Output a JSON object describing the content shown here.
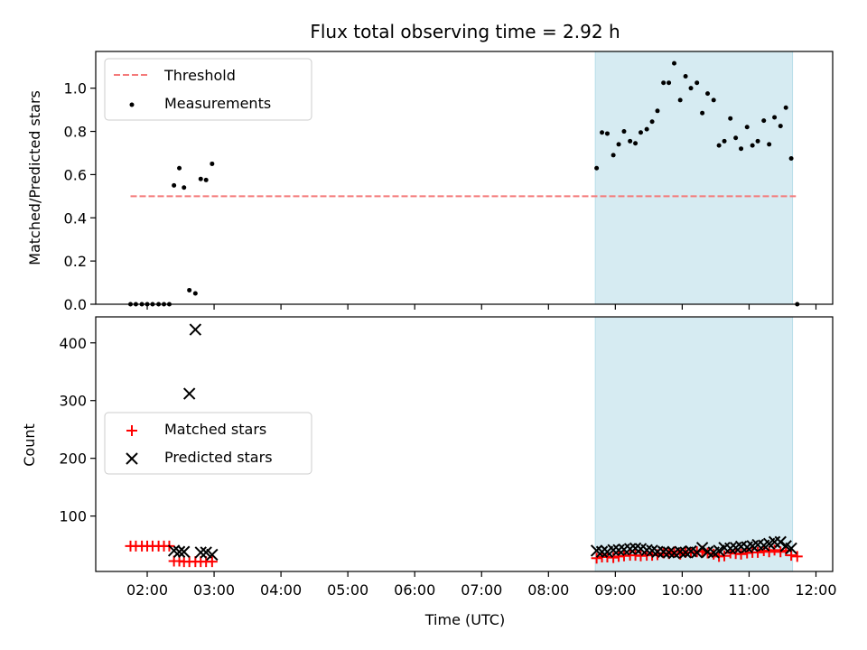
{
  "chart_data": [
    {
      "type": "scatter",
      "title": "Flux total observing time = 2.92 h",
      "xlabel": "",
      "ylabel": "Matched/Predicted stars",
      "xlim": [
        1.23,
        12.25
      ],
      "ylim": [
        0,
        1.17
      ],
      "x_tick_values": [
        2,
        3,
        4,
        5,
        6,
        7,
        8,
        9,
        10,
        11,
        12
      ],
      "y_ticks": [
        "0.0",
        "0.2",
        "0.4",
        "0.6",
        "0.8",
        "1.0"
      ],
      "y_tick_values": [
        0,
        0.2,
        0.4,
        0.6,
        0.8,
        1.0
      ],
      "legend_position": "upper-left",
      "shaded_span": {
        "x": [
          8.7,
          11.65
        ],
        "color": "#add8e6"
      },
      "threshold": {
        "name": "Threshold",
        "y": 0.5,
        "x": [
          1.75,
          11.7
        ],
        "color": "#f47a7a",
        "style": "dashed"
      },
      "series": [
        {
          "name": "Measurements",
          "color": "#000000",
          "x": [
            1.75,
            1.83,
            1.92,
            2.0,
            2.08,
            2.17,
            2.25,
            2.33,
            2.4,
            2.48,
            2.55,
            2.63,
            2.72,
            2.8,
            2.88,
            2.97,
            8.72,
            8.8,
            8.88,
            8.97,
            9.05,
            9.13,
            9.22,
            9.3,
            9.38,
            9.47,
            9.55,
            9.63,
            9.72,
            9.8,
            9.88,
            9.97,
            10.05,
            10.13,
            10.22,
            10.3,
            10.38,
            10.47,
            10.55,
            10.63,
            10.72,
            10.8,
            10.88,
            10.97,
            11.05,
            11.13,
            11.22,
            11.3,
            11.38,
            11.47,
            11.55,
            11.63,
            11.72
          ],
          "y": [
            0,
            0,
            0,
            0,
            0,
            0,
            0,
            0,
            0.55,
            0.63,
            0.54,
            0.065,
            0.05,
            0.58,
            0.575,
            0.65,
            0.63,
            0.795,
            0.79,
            0.69,
            0.74,
            0.8,
            0.755,
            0.745,
            0.795,
            0.81,
            0.845,
            0.895,
            1.025,
            1.025,
            1.115,
            0.945,
            1.055,
            1.0,
            1.025,
            0.885,
            0.975,
            0.945,
            0.735,
            0.755,
            0.86,
            0.77,
            0.72,
            0.82,
            0.735,
            0.755,
            0.85,
            0.74,
            0.865,
            0.825,
            0.91,
            0.675,
            0
          ]
        }
      ]
    },
    {
      "type": "scatter",
      "title": "",
      "xlabel": "Time (UTC)",
      "ylabel": "Count",
      "xlim": [
        1.23,
        12.25
      ],
      "ylim": [
        4,
        445
      ],
      "x_ticks": [
        "02:00",
        "03:00",
        "04:00",
        "05:00",
        "06:00",
        "07:00",
        "08:00",
        "09:00",
        "10:00",
        "11:00",
        "12:00"
      ],
      "x_tick_values": [
        2,
        3,
        4,
        5,
        6,
        7,
        8,
        9,
        10,
        11,
        12
      ],
      "y_ticks": [
        "100",
        "200",
        "300",
        "400"
      ],
      "y_tick_values": [
        100,
        200,
        300,
        400
      ],
      "legend_position": "center-left",
      "shaded_span": {
        "x": [
          8.7,
          11.65
        ],
        "color": "#add8e6"
      },
      "series": [
        {
          "name": "Matched stars",
          "marker": "plus",
          "color": "#ff0000",
          "x": [
            1.75,
            1.83,
            1.92,
            2.0,
            2.08,
            2.17,
            2.25,
            2.33,
            2.4,
            2.48,
            2.55,
            2.63,
            2.72,
            2.8,
            2.88,
            2.97,
            8.72,
            8.8,
            8.88,
            8.97,
            9.05,
            9.13,
            9.22,
            9.3,
            9.38,
            9.47,
            9.55,
            9.63,
            9.72,
            9.8,
            9.88,
            9.97,
            10.05,
            10.13,
            10.22,
            10.3,
            10.38,
            10.47,
            10.55,
            10.63,
            10.72,
            10.8,
            10.88,
            10.97,
            11.05,
            11.13,
            11.22,
            11.3,
            11.38,
            11.47,
            11.55,
            11.63,
            11.72
          ],
          "y": [
            48,
            48,
            48,
            48,
            48,
            48,
            48,
            48,
            22,
            22,
            21,
            21,
            21,
            21,
            21,
            21,
            27,
            29,
            29,
            28,
            30,
            31,
            32,
            32,
            31,
            32,
            32,
            33,
            36,
            35,
            38,
            34,
            37,
            37,
            38,
            39,
            36,
            34,
            30,
            31,
            36,
            35,
            34,
            36,
            37,
            37,
            40,
            38,
            41,
            38,
            40,
            32,
            30
          ]
        },
        {
          "name": "Predicted stars",
          "marker": "x",
          "color": "#000000",
          "x": [
            2.4,
            2.48,
            2.55,
            2.63,
            2.72,
            2.8,
            2.88,
            2.97,
            8.72,
            8.8,
            8.88,
            8.97,
            9.05,
            9.13,
            9.22,
            9.3,
            9.38,
            9.47,
            9.55,
            9.63,
            9.72,
            9.8,
            9.88,
            9.97,
            10.05,
            10.13,
            10.22,
            10.3,
            10.38,
            10.47,
            10.55,
            10.63,
            10.72,
            10.8,
            10.88,
            10.97,
            11.05,
            11.13,
            11.22,
            11.3,
            11.38,
            11.47,
            11.55,
            11.63
          ],
          "y": [
            40,
            38,
            38,
            312,
            423,
            37,
            37,
            33,
            40,
            38,
            38,
            41,
            41,
            42,
            43,
            44,
            43,
            41,
            40,
            38,
            38,
            37,
            36,
            38,
            37,
            39,
            37,
            45,
            38,
            37,
            40,
            45,
            44,
            45,
            47,
            46,
            48,
            50,
            49,
            52,
            55,
            55,
            48,
            44
          ]
        }
      ]
    }
  ]
}
